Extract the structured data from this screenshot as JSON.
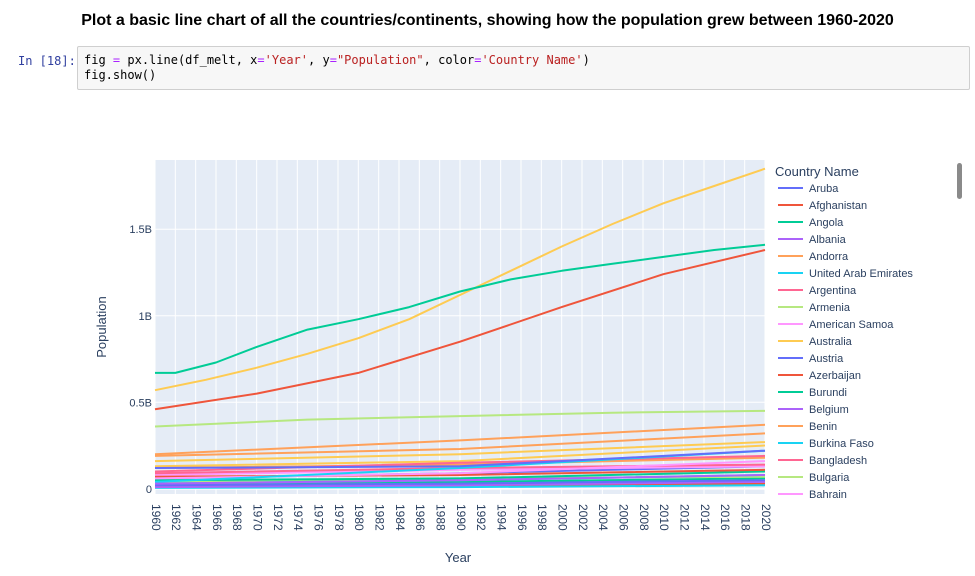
{
  "heading": "Plot a basic line chart of all the countries/continents, showing how the population grew between 1960-2020",
  "cell": {
    "prompt": "In [18]:",
    "line1": {
      "a": "fig ",
      "eq1": "=",
      "b": " px.line(df_melt, x",
      "eq2": "=",
      "s1": "'Year'",
      "c": ", y",
      "eq3": "=",
      "s2": "\"Population\"",
      "d": ", color",
      "eq4": "=",
      "s3": "'Country Name'",
      "e": ")"
    },
    "line2": "fig.show()"
  },
  "chart_data": {
    "type": "line",
    "xlabel": "Year",
    "ylabel": "Population",
    "xlim": [
      1960,
      2020
    ],
    "ylim": [
      -0.03,
      1.9
    ],
    "x_ticks": [
      1960,
      1962,
      1964,
      1966,
      1968,
      1970,
      1972,
      1974,
      1976,
      1978,
      1980,
      1982,
      1984,
      1986,
      1988,
      1990,
      1992,
      1994,
      1996,
      1998,
      2000,
      2002,
      2004,
      2006,
      2008,
      2010,
      2012,
      2014,
      2016,
      2018,
      2020
    ],
    "y_ticks": [
      {
        "value": 0,
        "label": "0"
      },
      {
        "value": 0.5,
        "label": "0.5B"
      },
      {
        "value": 1.0,
        "label": "1B"
      },
      {
        "value": 1.5,
        "label": "1.5B"
      }
    ],
    "grid": true,
    "legend_title": "Country Name",
    "legend_placement": "right",
    "series": [
      {
        "name": "Aruba",
        "color": "#636efa",
        "points": [
          [
            1960,
            0.12
          ],
          [
            1990,
            0.13
          ],
          [
            2020,
            0.22
          ]
        ]
      },
      {
        "name": "Afghanistan",
        "color": "#ef553b",
        "points": [
          [
            1960,
            0.46
          ],
          [
            1970,
            0.55
          ],
          [
            1980,
            0.67
          ],
          [
            1990,
            0.85
          ],
          [
            2000,
            1.05
          ],
          [
            2010,
            1.24
          ],
          [
            2020,
            1.38
          ]
        ]
      },
      {
        "name": "Angola",
        "color": "#00cc96",
        "points": [
          [
            1960,
            0.67
          ],
          [
            1962,
            0.67
          ],
          [
            1966,
            0.73
          ],
          [
            1970,
            0.82
          ],
          [
            1975,
            0.92
          ],
          [
            1980,
            0.98
          ],
          [
            1985,
            1.05
          ],
          [
            1990,
            1.14
          ],
          [
            1995,
            1.21
          ],
          [
            2000,
            1.26
          ],
          [
            2005,
            1.3
          ],
          [
            2010,
            1.34
          ],
          [
            2015,
            1.38
          ],
          [
            2020,
            1.41
          ]
        ]
      },
      {
        "name": "Albania",
        "color": "#ab63fa",
        "points": [
          [
            1960,
            0.03
          ],
          [
            1990,
            0.05
          ],
          [
            2020,
            0.08
          ]
        ]
      },
      {
        "name": "Andorra",
        "color": "#ffa15a",
        "points": [
          [
            1960,
            0.2
          ],
          [
            1990,
            0.28
          ],
          [
            2020,
            0.37
          ]
        ]
      },
      {
        "name": "United Arab Emirates",
        "color": "#19d3f3",
        "points": [
          [
            1960,
            0.04
          ],
          [
            1990,
            0.12
          ],
          [
            2020,
            0.22
          ]
        ]
      },
      {
        "name": "Argentina",
        "color": "#ff6692",
        "points": [
          [
            1960,
            0.1
          ],
          [
            1990,
            0.15
          ],
          [
            2020,
            0.19
          ]
        ]
      },
      {
        "name": "Armenia",
        "color": "#b6e880",
        "points": [
          [
            1960,
            0.36
          ],
          [
            1975,
            0.4
          ],
          [
            1990,
            0.42
          ],
          [
            2005,
            0.44
          ],
          [
            2020,
            0.45
          ]
        ]
      },
      {
        "name": "American Samoa",
        "color": "#ff97ff",
        "points": [
          [
            1960,
            0.06
          ],
          [
            1990,
            0.09
          ],
          [
            2020,
            0.16
          ]
        ]
      },
      {
        "name": "Australia",
        "color": "#fecb52",
        "points": [
          [
            1960,
            0.57
          ],
          [
            1965,
            0.63
          ],
          [
            1970,
            0.7
          ],
          [
            1975,
            0.78
          ],
          [
            1980,
            0.87
          ],
          [
            1985,
            0.98
          ],
          [
            1990,
            1.12
          ],
          [
            1995,
            1.26
          ],
          [
            2000,
            1.4
          ],
          [
            2005,
            1.53
          ],
          [
            2010,
            1.65
          ],
          [
            2015,
            1.75
          ],
          [
            2020,
            1.85
          ]
        ]
      },
      {
        "name": "Austria",
        "color": "#636efa",
        "points": [
          [
            1960,
            0.02
          ],
          [
            1990,
            0.03
          ],
          [
            2020,
            0.05
          ]
        ]
      },
      {
        "name": "Azerbaijan",
        "color": "#ef553b",
        "points": [
          [
            1960,
            0.07
          ],
          [
            1990,
            0.08
          ],
          [
            2020,
            0.11
          ]
        ]
      },
      {
        "name": "Burundi",
        "color": "#00cc96",
        "points": [
          [
            1960,
            0.05
          ],
          [
            1990,
            0.06
          ],
          [
            2020,
            0.1
          ]
        ]
      },
      {
        "name": "Belgium",
        "color": "#ab63fa",
        "points": [
          [
            1960,
            0.01
          ],
          [
            1990,
            0.02
          ],
          [
            2020,
            0.04
          ]
        ]
      },
      {
        "name": "Benin",
        "color": "#ffa15a",
        "points": [
          [
            1960,
            0.19
          ],
          [
            1990,
            0.23
          ],
          [
            2020,
            0.32
          ]
        ]
      },
      {
        "name": "Burkina Faso",
        "color": "#19d3f3",
        "points": [
          [
            1960,
            0.03
          ],
          [
            1990,
            0.05
          ],
          [
            2020,
            0.08
          ]
        ]
      },
      {
        "name": "Bangladesh",
        "color": "#ff6692",
        "points": [
          [
            1960,
            0.09
          ],
          [
            1990,
            0.12
          ],
          [
            2020,
            0.14
          ]
        ]
      },
      {
        "name": "Bulgaria",
        "color": "#b6e880",
        "points": [
          [
            1960,
            0.04
          ],
          [
            1990,
            0.06
          ],
          [
            2020,
            0.07
          ]
        ]
      },
      {
        "name": "Bahrain",
        "color": "#ff97ff",
        "points": [
          [
            1960,
            0.08
          ],
          [
            1990,
            0.11
          ],
          [
            2020,
            0.13
          ]
        ]
      }
    ],
    "extra_series": [
      {
        "color": "#fecb52",
        "points": [
          [
            1960,
            0.16
          ],
          [
            1990,
            0.2
          ],
          [
            2020,
            0.27
          ]
        ]
      },
      {
        "color": "#fecb52",
        "points": [
          [
            1960,
            0.13
          ],
          [
            1990,
            0.16
          ],
          [
            2020,
            0.25
          ]
        ]
      },
      {
        "color": "#ffa15a",
        "points": [
          [
            1960,
            0.12
          ],
          [
            1990,
            0.14
          ],
          [
            2020,
            0.18
          ]
        ]
      },
      {
        "color": "#636efa",
        "points": [
          [
            1960,
            0.06
          ],
          [
            1990,
            0.09
          ],
          [
            2020,
            0.13
          ]
        ]
      },
      {
        "color": "#00cc96",
        "points": [
          [
            1960,
            0.02
          ],
          [
            1990,
            0.04
          ],
          [
            2020,
            0.06
          ]
        ]
      },
      {
        "color": "#ef553b",
        "points": [
          [
            1960,
            0.01
          ],
          [
            1990,
            0.015
          ],
          [
            2020,
            0.03
          ]
        ]
      },
      {
        "color": "#19d3f3",
        "points": [
          [
            1960,
            0.005
          ],
          [
            1990,
            0.01
          ],
          [
            2020,
            0.02
          ]
        ]
      }
    ]
  }
}
